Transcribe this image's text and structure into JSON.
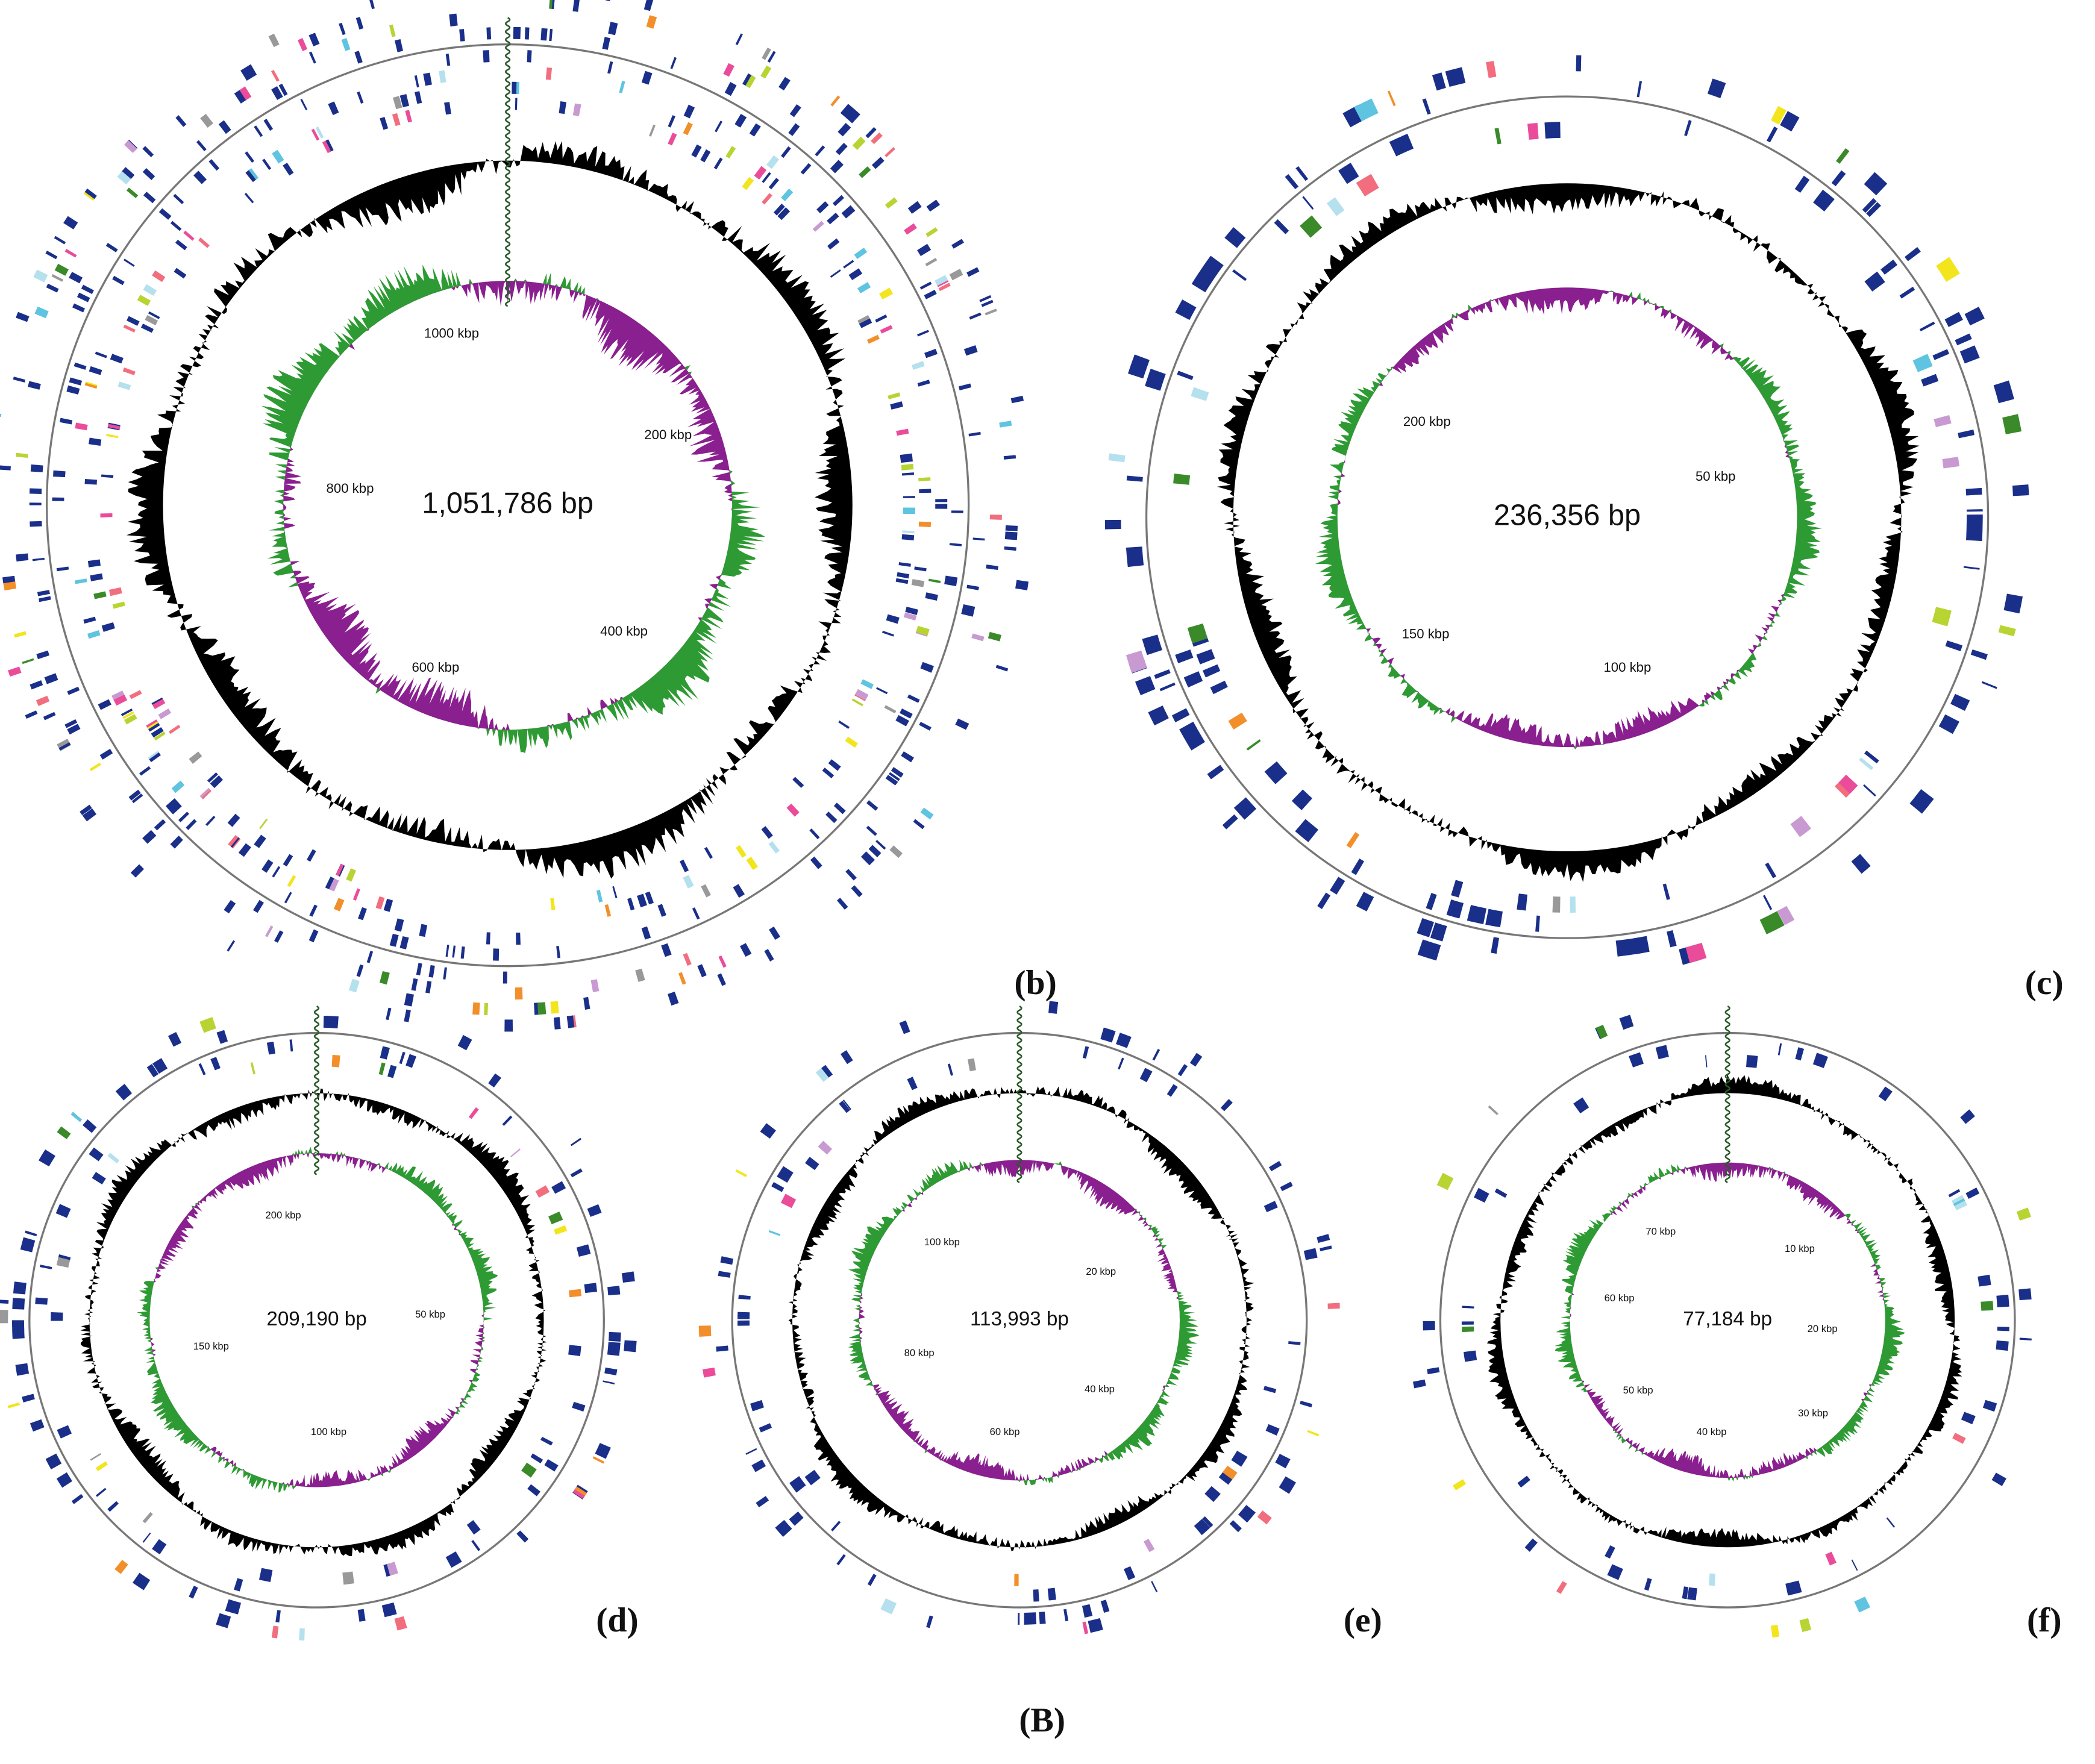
{
  "figure_label": "(B)",
  "panels": [
    {
      "label": "(b)",
      "size": "1,051,786 bp",
      "ticks": [
        "1000 kbp",
        "200 kbp",
        "800 kbp",
        "400 kbp",
        "600 kbp"
      ]
    },
    {
      "label": "(c)",
      "size": "236,356 bp",
      "ticks": [
        "200 kbp",
        "50 kbp",
        "150 kbp",
        "100 kbp"
      ]
    },
    {
      "label": "(d)",
      "size": "209,190 bp",
      "ticks": [
        "200 kbp",
        "50 kbp",
        "150 kbp",
        "100 kbp"
      ]
    },
    {
      "label": "(e)",
      "size": "113,993 bp",
      "ticks": [
        "100 kbp",
        "20 kbp",
        "80 kbp",
        "40 kbp",
        "60 kbp"
      ]
    },
    {
      "label": "(f)",
      "size": "77,184 bp",
      "ticks": [
        "70 kbp",
        "10 kbp",
        "60 kbp",
        "20 kbp",
        "50 kbp",
        "30 kbp",
        "40 kbp"
      ]
    }
  ]
}
